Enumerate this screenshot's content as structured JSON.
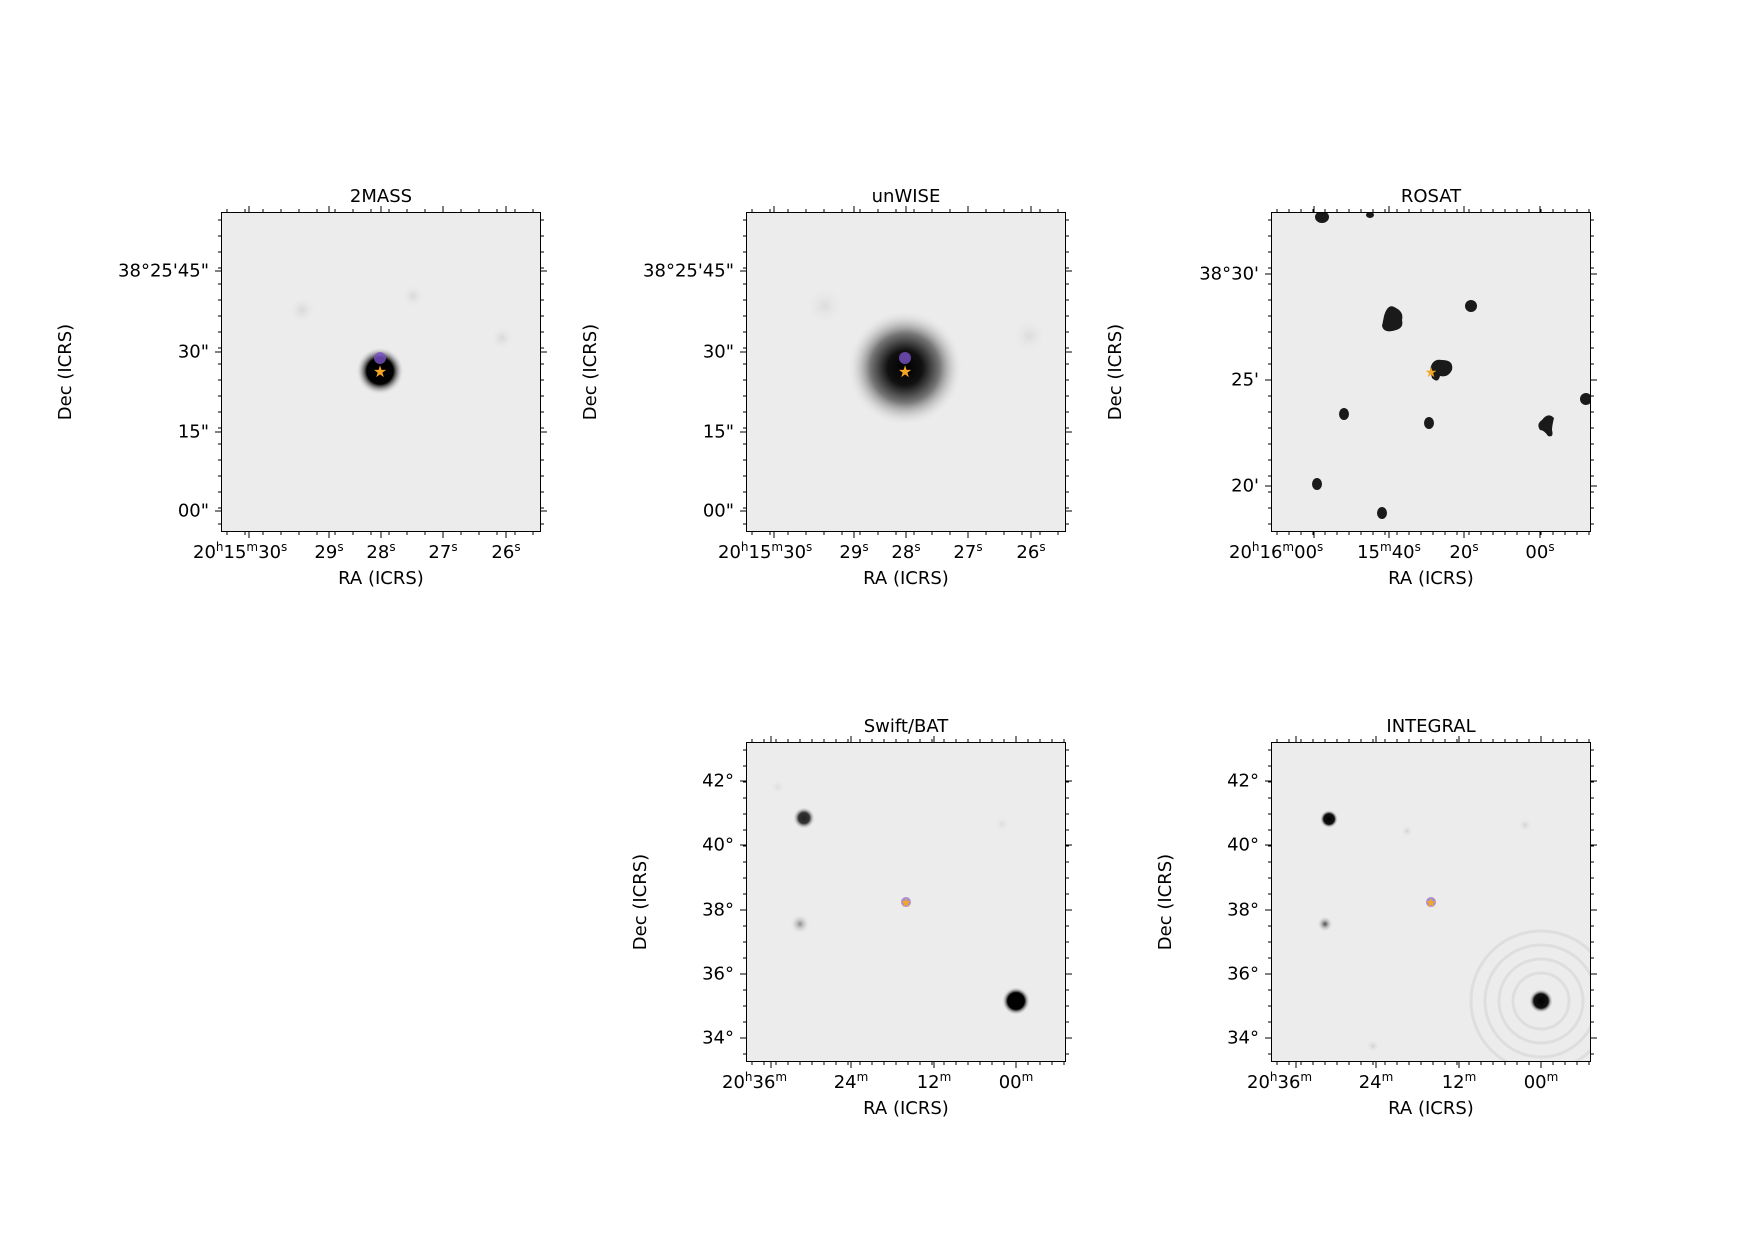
{
  "panels": [
    {
      "title": "2MASS",
      "xlabel": "RA (ICRS)",
      "ylabel": "Dec (ICRS)",
      "yticks": [
        "38°25'45\"",
        "30\"",
        "15\"",
        "00\""
      ],
      "xticks": [
        {
          "parts": [
            [
              "20",
              "h"
            ],
            [
              "15",
              "m"
            ],
            [
              "30",
              "s"
            ]
          ]
        },
        {
          "parts": [
            [
              "29",
              "s"
            ]
          ]
        },
        {
          "parts": [
            [
              "28",
              "s"
            ]
          ]
        },
        {
          "parts": [
            [
              "27",
              "s"
            ]
          ]
        },
        {
          "parts": [
            [
              "26",
              "s"
            ]
          ]
        }
      ]
    },
    {
      "title": "unWISE",
      "xlabel": "RA (ICRS)",
      "ylabel": "Dec (ICRS)",
      "yticks": [
        "38°25'45\"",
        "30\"",
        "15\"",
        "00\""
      ],
      "xticks": [
        {
          "parts": [
            [
              "20",
              "h"
            ],
            [
              "15",
              "m"
            ],
            [
              "30",
              "s"
            ]
          ]
        },
        {
          "parts": [
            [
              "29",
              "s"
            ]
          ]
        },
        {
          "parts": [
            [
              "28",
              "s"
            ]
          ]
        },
        {
          "parts": [
            [
              "27",
              "s"
            ]
          ]
        },
        {
          "parts": [
            [
              "26",
              "s"
            ]
          ]
        }
      ]
    },
    {
      "title": "ROSAT",
      "xlabel": "RA (ICRS)",
      "ylabel": "Dec (ICRS)",
      "yticks": [
        "38°30'",
        "25'",
        "20'"
      ],
      "xticks": [
        {
          "parts": [
            [
              "20",
              "h"
            ],
            [
              "16",
              "m"
            ],
            [
              "00",
              "s"
            ]
          ]
        },
        {
          "parts": [
            [
              "15",
              "m"
            ],
            [
              "40",
              "s"
            ]
          ]
        },
        {
          "parts": [
            [
              "20",
              "s"
            ]
          ]
        },
        {
          "parts": [
            [
              "00",
              "s"
            ]
          ]
        }
      ]
    },
    {
      "title": "Swift/BAT",
      "xlabel": "RA (ICRS)",
      "ylabel": "Dec (ICRS)",
      "yticks": [
        "42°",
        "40°",
        "38°",
        "36°",
        "34°"
      ],
      "xticks": [
        {
          "parts": [
            [
              "20",
              "h"
            ],
            [
              "36",
              "m"
            ]
          ]
        },
        {
          "parts": [
            [
              "24",
              "m"
            ]
          ]
        },
        {
          "parts": [
            [
              "12",
              "m"
            ]
          ]
        },
        {
          "parts": [
            [
              "00",
              "m"
            ]
          ]
        }
      ]
    },
    {
      "title": "INTEGRAL",
      "xlabel": "RA (ICRS)",
      "ylabel": "Dec (ICRS)",
      "yticks": [
        "42°",
        "40°",
        "38°",
        "36°",
        "34°"
      ],
      "xticks": [
        {
          "parts": [
            [
              "20",
              "h"
            ],
            [
              "36",
              "m"
            ]
          ]
        },
        {
          "parts": [
            [
              "24",
              "m"
            ]
          ]
        },
        {
          "parts": [
            [
              "12",
              "m"
            ]
          ]
        },
        {
          "parts": [
            [
              "00",
              "m"
            ]
          ]
        }
      ]
    }
  ],
  "colors": {
    "background": "#ececec",
    "source": "#000000",
    "target_marker": "#f5a623",
    "secondary_marker": "#7b52c7"
  }
}
